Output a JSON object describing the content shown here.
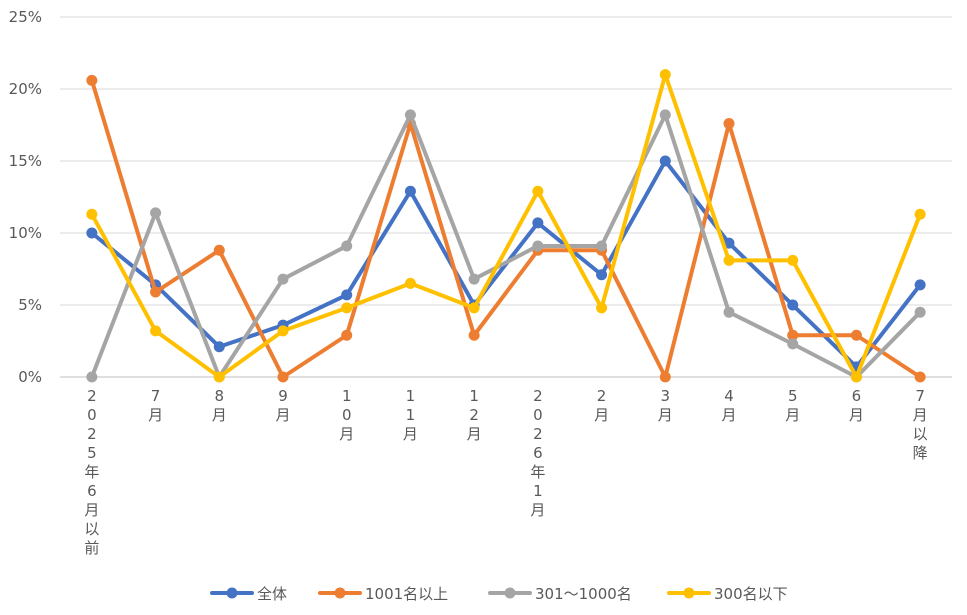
{
  "chart_data": {
    "type": "line",
    "title": "",
    "xlabel": "",
    "ylabel": "",
    "ylim": [
      0,
      25
    ],
    "y_ticks": [
      "0%",
      "5%",
      "10%",
      "15%",
      "20%",
      "25%"
    ],
    "grid": "horizontal",
    "legend_position": "bottom",
    "categories": [
      "2025年6月以前",
      "7月",
      "8月",
      "9月",
      "10月",
      "11月",
      "12月",
      "2026年1月",
      "2月",
      "3月",
      "4月",
      "5月",
      "6月",
      "7月以降"
    ],
    "series": [
      {
        "name": "全体",
        "color": "#4472C4",
        "values": [
          10.0,
          6.4,
          2.1,
          3.6,
          5.7,
          12.9,
          5.0,
          10.7,
          7.1,
          15.0,
          9.3,
          5.0,
          0.7,
          6.4
        ]
      },
      {
        "name": "1001名以上",
        "color": "#ED7D31",
        "values": [
          20.6,
          5.9,
          8.8,
          0.0,
          2.9,
          17.6,
          2.9,
          8.8,
          8.8,
          0.0,
          17.6,
          2.9,
          2.9,
          0.0
        ]
      },
      {
        "name": "301〜1000名",
        "color": "#A5A5A5",
        "values": [
          0.0,
          11.4,
          0.0,
          6.8,
          9.1,
          18.2,
          6.8,
          9.1,
          9.1,
          18.2,
          4.5,
          2.3,
          0.0,
          4.5
        ]
      },
      {
        "name": "300名以下",
        "color": "#FFC000",
        "values": [
          11.3,
          3.2,
          0.0,
          3.2,
          4.8,
          6.5,
          4.8,
          12.9,
          4.8,
          21.0,
          8.1,
          8.1,
          0.0,
          11.3
        ]
      }
    ]
  }
}
